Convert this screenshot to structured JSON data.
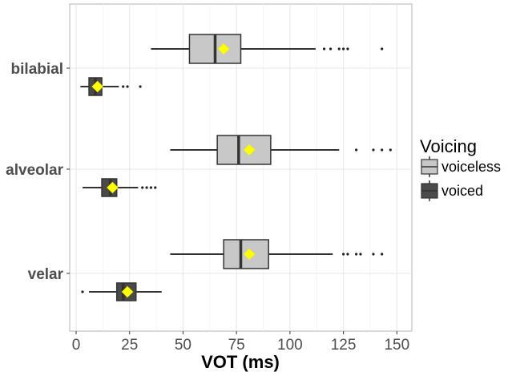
{
  "chart_data": {
    "type": "boxplot",
    "orientation": "horizontal",
    "xlabel": "VOT (ms)",
    "ylabel": "",
    "xlim": [
      -3,
      157
    ],
    "x_ticks": [
      0,
      25,
      50,
      75,
      100,
      125,
      150
    ],
    "grid": true,
    "legend": {
      "title": "Voicing",
      "position": "right",
      "entries": [
        "voiceless",
        "voiced"
      ]
    },
    "colors": {
      "voiceless": "#c8c8c8",
      "voiced": "#4a4a4a",
      "mean_marker": "#ffff00",
      "whisker": "#333333"
    },
    "categories": [
      "bilabial",
      "alveolar",
      "velar"
    ],
    "series": [
      {
        "name": "voiceless",
        "boxes": [
          {
            "category": "bilabial",
            "whisker_low": 35,
            "q1": 53,
            "median": 65,
            "q3": 77,
            "whisker_high": 112,
            "mean": 69,
            "outliers": [
              116,
              119,
              123,
              125,
              127,
              143
            ]
          },
          {
            "category": "alveolar",
            "whisker_low": 44,
            "q1": 66,
            "median": 76,
            "q3": 91,
            "whisker_high": 123,
            "mean": 81,
            "outliers": [
              131,
              139,
              143,
              147
            ]
          },
          {
            "category": "velar",
            "whisker_low": 44,
            "q1": 69,
            "median": 77,
            "q3": 90,
            "whisker_high": 120,
            "mean": 81,
            "outliers": [
              125,
              127,
              131,
              133,
              139,
              143
            ]
          }
        ]
      },
      {
        "name": "voiced",
        "boxes": [
          {
            "category": "bilabial",
            "whisker_low": 2,
            "q1": 6,
            "median": 9,
            "q3": 12,
            "whisker_high": 20,
            "mean": 10,
            "outliers": [
              22,
              24,
              30
            ]
          },
          {
            "category": "alveolar",
            "whisker_low": 3,
            "q1": 12,
            "median": 16,
            "q3": 19,
            "whisker_high": 29,
            "mean": 17,
            "outliers": [
              31,
              33,
              35,
              37
            ]
          },
          {
            "category": "velar",
            "whisker_low": 6,
            "q1": 19,
            "median": 22,
            "q3": 28,
            "whisker_high": 40,
            "mean": 24,
            "outliers": [
              3
            ]
          }
        ]
      }
    ]
  }
}
